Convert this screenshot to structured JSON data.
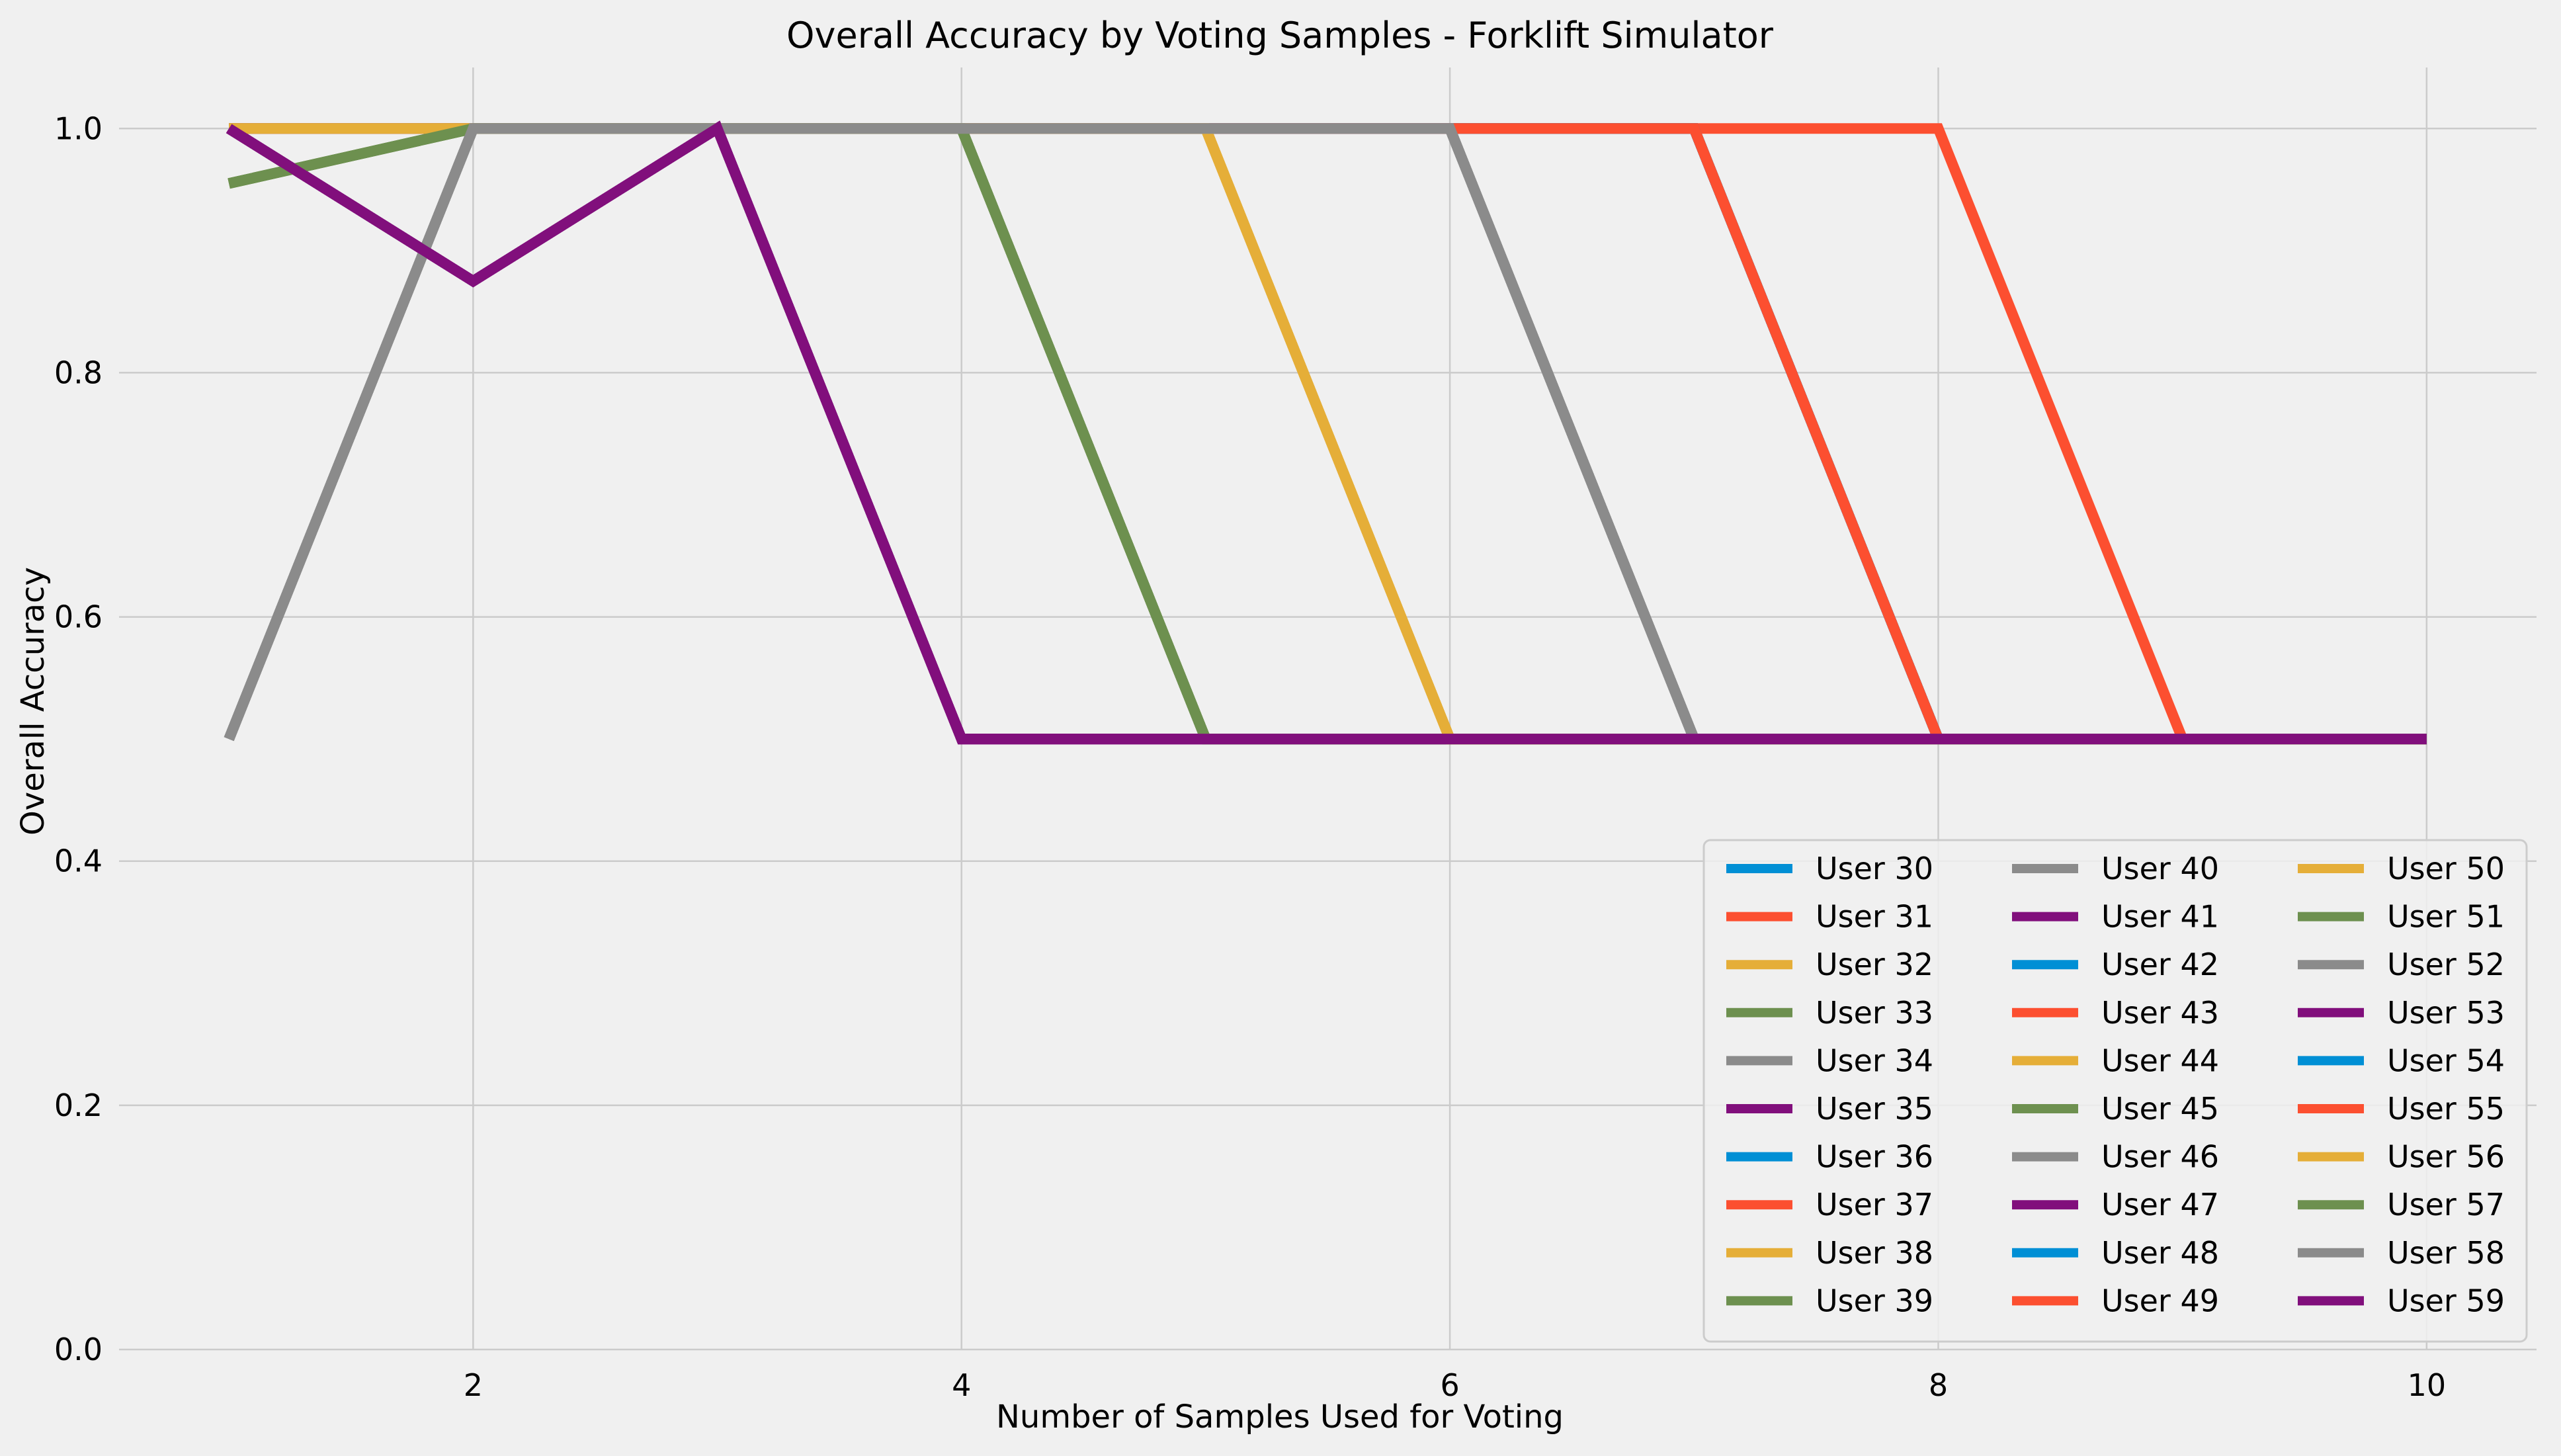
{
  "chart_data": {
    "type": "line",
    "title": "Overall Accuracy by Voting Samples - Forklift Simulator",
    "xlabel": "Number of Samples Used for Voting",
    "ylabel": "Overall Accuracy",
    "xlim": [
      0.55,
      10.45
    ],
    "ylim": [
      0,
      1.0
    ],
    "xticks": [
      2,
      4,
      6,
      8,
      10
    ],
    "yticks": [
      0.0,
      0.2,
      0.4,
      0.6,
      0.8,
      1.0
    ],
    "grid": true,
    "legend_position": "bottom-right",
    "legend_columns": 3,
    "x": [
      1,
      2,
      3,
      4,
      5,
      6,
      7,
      8,
      9,
      10
    ],
    "series": [
      {
        "name": "User 30",
        "color": "#008fd5",
        "values": [
          1,
          1,
          1,
          1,
          1,
          1,
          1,
          0.5,
          0.5,
          0.5
        ]
      },
      {
        "name": "User 31",
        "color": "#fc4f30",
        "values": [
          1,
          1,
          1,
          1,
          1,
          1,
          1,
          0.5,
          0.5,
          0.5
        ]
      },
      {
        "name": "User 32",
        "color": "#e5ae38",
        "values": [
          1,
          1,
          1,
          1,
          1,
          0.5,
          0.5,
          0.5,
          0.5,
          0.5
        ]
      },
      {
        "name": "User 33",
        "color": "#6d904f",
        "values": [
          0.955,
          1,
          1,
          1,
          0.5,
          0.5,
          0.5,
          0.5,
          0.5,
          0.5
        ]
      },
      {
        "name": "User 34",
        "color": "#8b8b8b",
        "values": [
          0.5,
          1,
          1,
          1,
          1,
          1,
          0.5,
          0.5,
          0.5,
          0.5
        ]
      },
      {
        "name": "User 35",
        "color": "#810f7c",
        "values": [
          1,
          0.875,
          1,
          0.5,
          0.5,
          0.5,
          0.5,
          0.5,
          0.5,
          0.5
        ]
      },
      {
        "name": "User 36",
        "color": "#008fd5",
        "values": [
          1,
          1,
          1,
          1,
          1,
          1,
          1,
          0.5,
          0.5,
          0.5
        ]
      },
      {
        "name": "User 37",
        "color": "#fc4f30",
        "values": [
          1,
          1,
          1,
          1,
          1,
          1,
          1,
          0.5,
          0.5,
          0.5
        ]
      },
      {
        "name": "User 38",
        "color": "#e5ae38",
        "values": [
          1,
          1,
          1,
          1,
          1,
          0.5,
          0.5,
          0.5,
          0.5,
          0.5
        ]
      },
      {
        "name": "User 39",
        "color": "#6d904f",
        "values": [
          0.955,
          1,
          1,
          1,
          0.5,
          0.5,
          0.5,
          0.5,
          0.5,
          0.5
        ]
      },
      {
        "name": "User 40",
        "color": "#8b8b8b",
        "values": [
          0.5,
          1,
          1,
          1,
          1,
          1,
          0.5,
          0.5,
          0.5,
          0.5
        ]
      },
      {
        "name": "User 41",
        "color": "#810f7c",
        "values": [
          1,
          0.875,
          1,
          0.5,
          0.5,
          0.5,
          0.5,
          0.5,
          0.5,
          0.5
        ]
      },
      {
        "name": "User 42",
        "color": "#008fd5",
        "values": [
          1,
          1,
          1,
          1,
          1,
          1,
          1,
          0.5,
          0.5,
          0.5
        ]
      },
      {
        "name": "User 43",
        "color": "#fc4f30",
        "values": [
          1,
          1,
          1,
          1,
          1,
          1,
          1,
          0.5,
          0.5,
          0.5
        ]
      },
      {
        "name": "User 44",
        "color": "#e5ae38",
        "values": [
          1,
          1,
          1,
          1,
          1,
          0.5,
          0.5,
          0.5,
          0.5,
          0.5
        ]
      },
      {
        "name": "User 45",
        "color": "#6d904f",
        "values": [
          0.955,
          1,
          1,
          1,
          0.5,
          0.5,
          0.5,
          0.5,
          0.5,
          0.5
        ]
      },
      {
        "name": "User 46",
        "color": "#8b8b8b",
        "values": [
          0.5,
          1,
          1,
          1,
          1,
          1,
          0.5,
          0.5,
          0.5,
          0.5
        ]
      },
      {
        "name": "User 47",
        "color": "#810f7c",
        "values": [
          1,
          0.875,
          1,
          0.5,
          0.5,
          0.5,
          0.5,
          0.5,
          0.5,
          0.5
        ]
      },
      {
        "name": "User 48",
        "color": "#008fd5",
        "values": [
          1,
          1,
          1,
          1,
          1,
          1,
          1,
          0.5,
          0.5,
          0.5
        ]
      },
      {
        "name": "User 49",
        "color": "#fc4f30",
        "values": [
          1,
          1,
          1,
          1,
          1,
          1,
          1,
          1,
          0.5,
          0.5
        ]
      },
      {
        "name": "User 50",
        "color": "#e5ae38",
        "values": [
          1,
          1,
          1,
          1,
          1,
          0.5,
          0.5,
          0.5,
          0.5,
          0.5
        ]
      },
      {
        "name": "User 51",
        "color": "#6d904f",
        "values": [
          0.955,
          1,
          1,
          1,
          0.5,
          0.5,
          0.5,
          0.5,
          0.5,
          0.5
        ]
      },
      {
        "name": "User 52",
        "color": "#8b8b8b",
        "values": [
          0.5,
          1,
          1,
          1,
          1,
          1,
          0.5,
          0.5,
          0.5,
          0.5
        ]
      },
      {
        "name": "User 53",
        "color": "#810f7c",
        "values": [
          1,
          0.875,
          1,
          0.5,
          0.5,
          0.5,
          0.5,
          0.5,
          0.5,
          0.5
        ]
      },
      {
        "name": "User 54",
        "color": "#008fd5",
        "values": [
          1,
          1,
          1,
          1,
          1,
          1,
          1,
          0.5,
          0.5,
          0.5
        ]
      },
      {
        "name": "User 55",
        "color": "#fc4f30",
        "values": [
          1,
          1,
          1,
          1,
          1,
          1,
          1,
          0.5,
          0.5,
          0.5
        ]
      },
      {
        "name": "User 56",
        "color": "#e5ae38",
        "values": [
          1,
          1,
          1,
          1,
          1,
          0.5,
          0.5,
          0.5,
          0.5,
          0.5
        ]
      },
      {
        "name": "User 57",
        "color": "#6d904f",
        "values": [
          0.955,
          1,
          1,
          1,
          0.5,
          0.5,
          0.5,
          0.5,
          0.5,
          0.5
        ]
      },
      {
        "name": "User 58",
        "color": "#8b8b8b",
        "values": [
          0.5,
          1,
          1,
          1,
          1,
          1,
          0.5,
          0.5,
          0.5,
          0.5
        ]
      },
      {
        "name": "User 59",
        "color": "#810f7c",
        "values": [
          1,
          0.875,
          1,
          0.5,
          0.5,
          0.5,
          0.5,
          0.5,
          0.5,
          0.5
        ]
      }
    ]
  }
}
